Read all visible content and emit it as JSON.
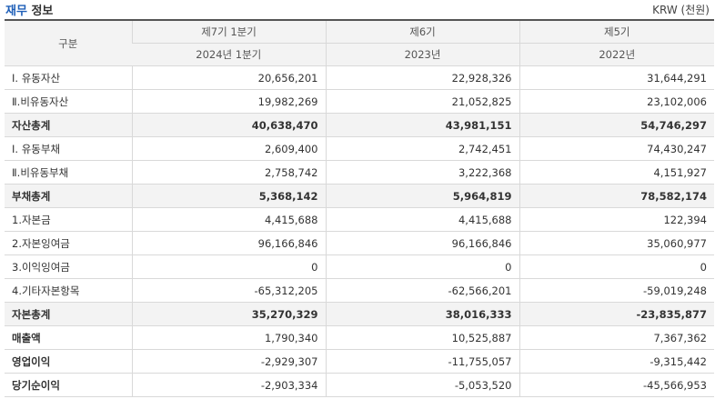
{
  "header": {
    "title_accent": "재무",
    "title_rest": " 정보",
    "unit": "KRW (천원)"
  },
  "table": {
    "first_col_header": "구분",
    "periods": [
      "제7기 1분기",
      "제6기",
      "제5기"
    ],
    "dates": [
      "2024년 1분기",
      "2023년",
      "2022년"
    ],
    "rows": [
      {
        "label": "Ⅰ. 유동자산",
        "values": [
          "20,656,201",
          "22,928,326",
          "31,644,291"
        ],
        "style": "normal"
      },
      {
        "label": "Ⅱ.비유동자산",
        "values": [
          "19,982,269",
          "21,052,825",
          "23,102,006"
        ],
        "style": "normal"
      },
      {
        "label": "자산총계",
        "values": [
          "40,638,470",
          "43,981,151",
          "54,746,297"
        ],
        "style": "total"
      },
      {
        "label": "Ⅰ. 유동부채",
        "values": [
          "2,609,400",
          "2,742,451",
          "74,430,247"
        ],
        "style": "normal"
      },
      {
        "label": "Ⅱ.비유동부채",
        "values": [
          "2,758,742",
          "3,222,368",
          "4,151,927"
        ],
        "style": "normal"
      },
      {
        "label": "부채총계",
        "values": [
          "5,368,142",
          "5,964,819",
          "78,582,174"
        ],
        "style": "total"
      },
      {
        "label": "1.자본금",
        "values": [
          "4,415,688",
          "4,415,688",
          "122,394"
        ],
        "style": "normal"
      },
      {
        "label": "2.자본잉여금",
        "values": [
          "96,166,846",
          "96,166,846",
          "35,060,977"
        ],
        "style": "normal"
      },
      {
        "label": "3.이익잉여금",
        "values": [
          "0",
          "0",
          "0"
        ],
        "style": "normal"
      },
      {
        "label": "4.기타자본항목",
        "values": [
          "-65,312,205",
          "-62,566,201",
          "-59,019,248"
        ],
        "style": "normal"
      },
      {
        "label": "자본총계",
        "values": [
          "35,270,329",
          "38,016,333",
          "-23,835,877"
        ],
        "style": "total"
      },
      {
        "label": "매출액",
        "values": [
          "1,790,340",
          "10,525,887",
          "7,367,362"
        ],
        "style": "bold"
      },
      {
        "label": "영업이익",
        "values": [
          "-2,929,307",
          "-11,755,057",
          "-9,315,442"
        ],
        "style": "bold"
      },
      {
        "label": "당기순이익",
        "values": [
          "-2,903,334",
          "-5,053,520",
          "-45,566,953"
        ],
        "style": "bold"
      }
    ]
  }
}
